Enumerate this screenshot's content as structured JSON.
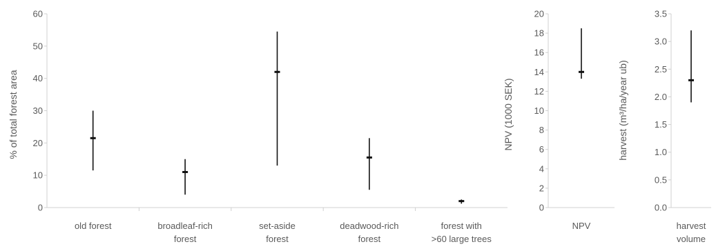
{
  "chart_data": [
    {
      "type": "range",
      "title": "",
      "xlabel": "",
      "ylabel": "% of total forest area",
      "ylim": [
        0,
        60
      ],
      "yticks": [
        0,
        10,
        20,
        30,
        40,
        50,
        60
      ],
      "grid": false,
      "categories": [
        [
          "old forest"
        ],
        [
          "broadleaf-rich",
          "forest"
        ],
        [
          "set-aside",
          "forest"
        ],
        [
          "deadwood-rich",
          "forest"
        ],
        [
          "forest with",
          ">60 large trees"
        ]
      ],
      "series": [
        {
          "low": [
            11.5,
            4.0,
            13.0,
            5.5,
            1.2
          ],
          "high": [
            30.0,
            15.0,
            54.5,
            21.5,
            2.5
          ],
          "mid": [
            21.5,
            11.0,
            42.0,
            15.5,
            2.0
          ]
        }
      ]
    },
    {
      "type": "range",
      "title": "",
      "xlabel": "",
      "ylabel": "NPV (1000 SEK)",
      "ylim": [
        0,
        20
      ],
      "yticks": [
        0,
        2,
        4,
        6,
        8,
        10,
        12,
        14,
        16,
        18,
        20
      ],
      "grid": false,
      "categories": [
        [
          "NPV"
        ]
      ],
      "series": [
        {
          "low": [
            13.3
          ],
          "high": [
            18.5
          ],
          "mid": [
            14.0
          ]
        }
      ]
    },
    {
      "type": "range",
      "title": "",
      "xlabel": "",
      "ylabel": "harvest (m³/ha/year ub)",
      "ylim": [
        0,
        3.5
      ],
      "yticks": [
        "0.0",
        "0.5",
        "1.0",
        "1.5",
        "2.0",
        "2.5",
        "3.0",
        "3.5"
      ],
      "grid": false,
      "categories": [
        [
          "harvest",
          "volume"
        ]
      ],
      "series": [
        {
          "low": [
            1.9
          ],
          "high": [
            3.2
          ],
          "mid": [
            2.3
          ]
        }
      ]
    }
  ]
}
